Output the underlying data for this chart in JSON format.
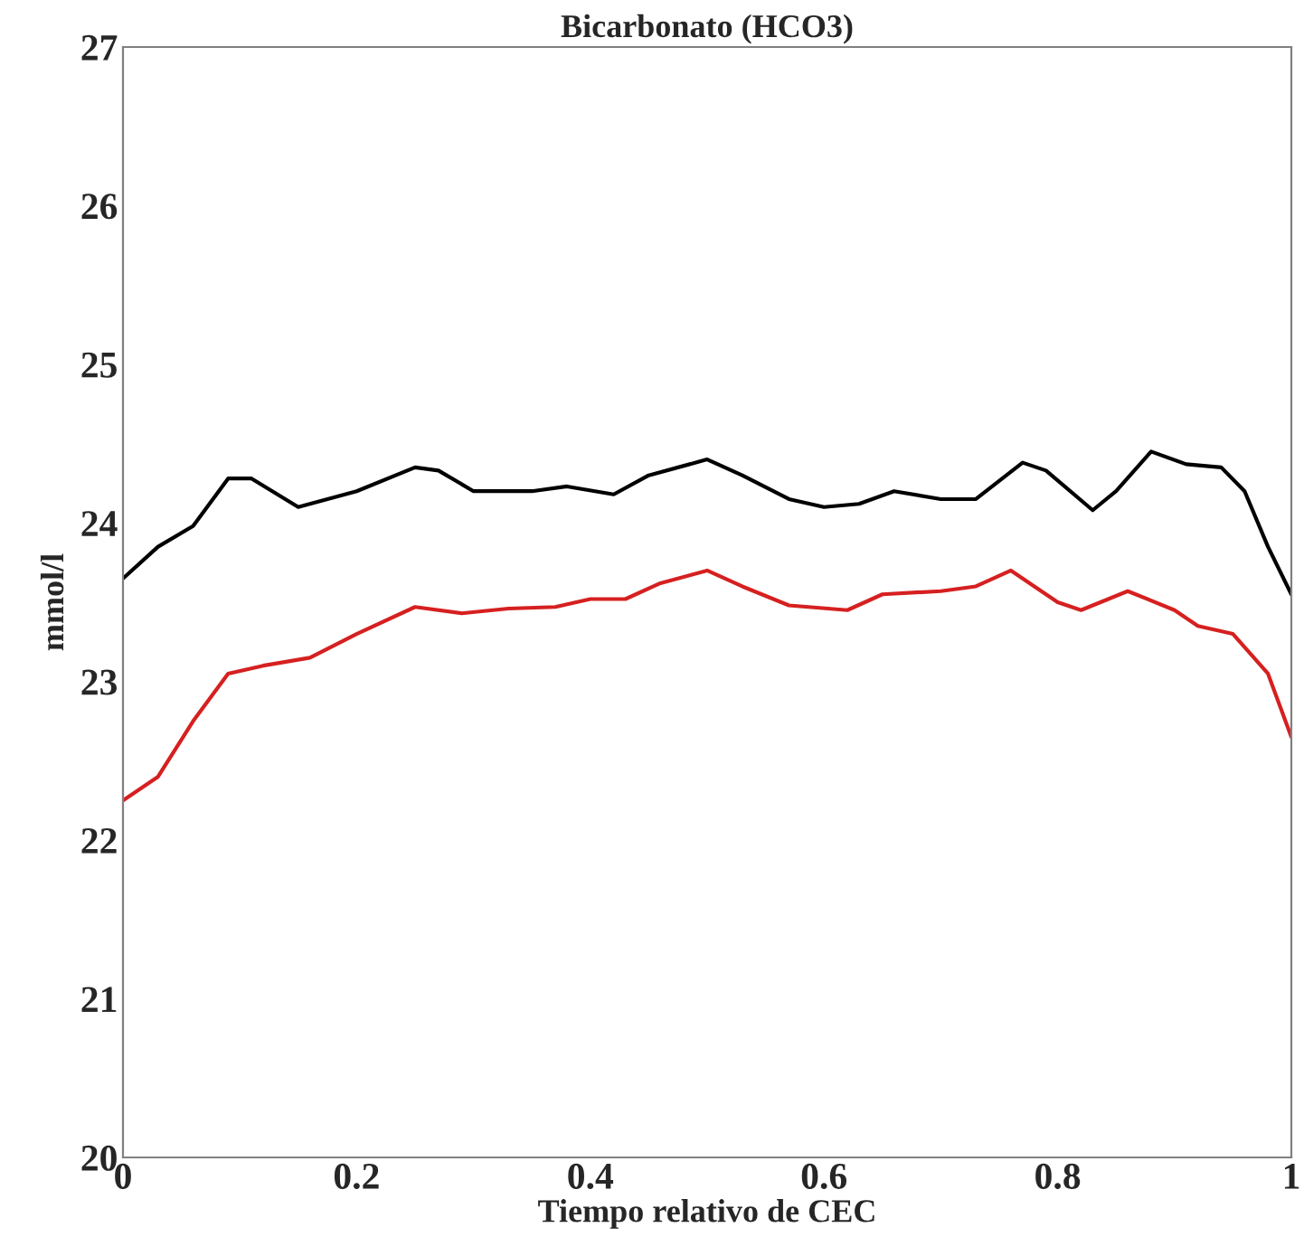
{
  "chart_data": {
    "type": "line",
    "title": "Bicarbonato (HCO3)",
    "xlabel": "Tiempo relativo de CEC",
    "ylabel": "mmol/l",
    "xlim": [
      0,
      1
    ],
    "xticks": [
      0,
      0.2,
      0.4,
      0.6,
      0.8,
      1
    ],
    "ylim": [
      20,
      27
    ],
    "yticks": [
      20,
      21,
      22,
      23,
      24,
      25,
      26,
      27
    ],
    "grid": false,
    "marker": "none",
    "line_style": "solid",
    "series": [
      {
        "color": "#000000",
        "x": [
          0,
          0.03,
          0.06,
          0.09,
          0.11,
          0.15,
          0.2,
          0.25,
          0.27,
          0.3,
          0.35,
          0.38,
          0.42,
          0.45,
          0.5,
          0.53,
          0.57,
          0.6,
          0.63,
          0.66,
          0.7,
          0.73,
          0.77,
          0.79,
          0.83,
          0.85,
          0.88,
          0.91,
          0.94,
          0.96,
          0.98,
          1
        ],
        "values": [
          23.65,
          23.85,
          23.98,
          24.28,
          24.28,
          24.1,
          24.2,
          24.35,
          24.33,
          24.2,
          24.2,
          24.23,
          24.18,
          24.3,
          24.4,
          24.3,
          24.15,
          24.1,
          24.12,
          24.2,
          24.15,
          24.15,
          24.38,
          24.33,
          24.08,
          24.2,
          24.45,
          24.37,
          24.35,
          24.2,
          23.85,
          23.55
        ]
      },
      {
        "color": "#d62020",
        "x": [
          0,
          0.03,
          0.06,
          0.09,
          0.12,
          0.16,
          0.2,
          0.25,
          0.29,
          0.33,
          0.37,
          0.4,
          0.43,
          0.46,
          0.5,
          0.53,
          0.57,
          0.62,
          0.65,
          0.7,
          0.73,
          0.76,
          0.8,
          0.82,
          0.86,
          0.9,
          0.92,
          0.95,
          0.98,
          1
        ],
        "values": [
          22.25,
          22.4,
          22.75,
          23.05,
          23.1,
          23.15,
          23.3,
          23.47,
          23.43,
          23.46,
          23.47,
          23.52,
          23.52,
          23.62,
          23.7,
          23.6,
          23.48,
          23.45,
          23.55,
          23.57,
          23.6,
          23.7,
          23.5,
          23.45,
          23.57,
          23.45,
          23.35,
          23.3,
          23.05,
          22.65
        ]
      }
    ]
  }
}
